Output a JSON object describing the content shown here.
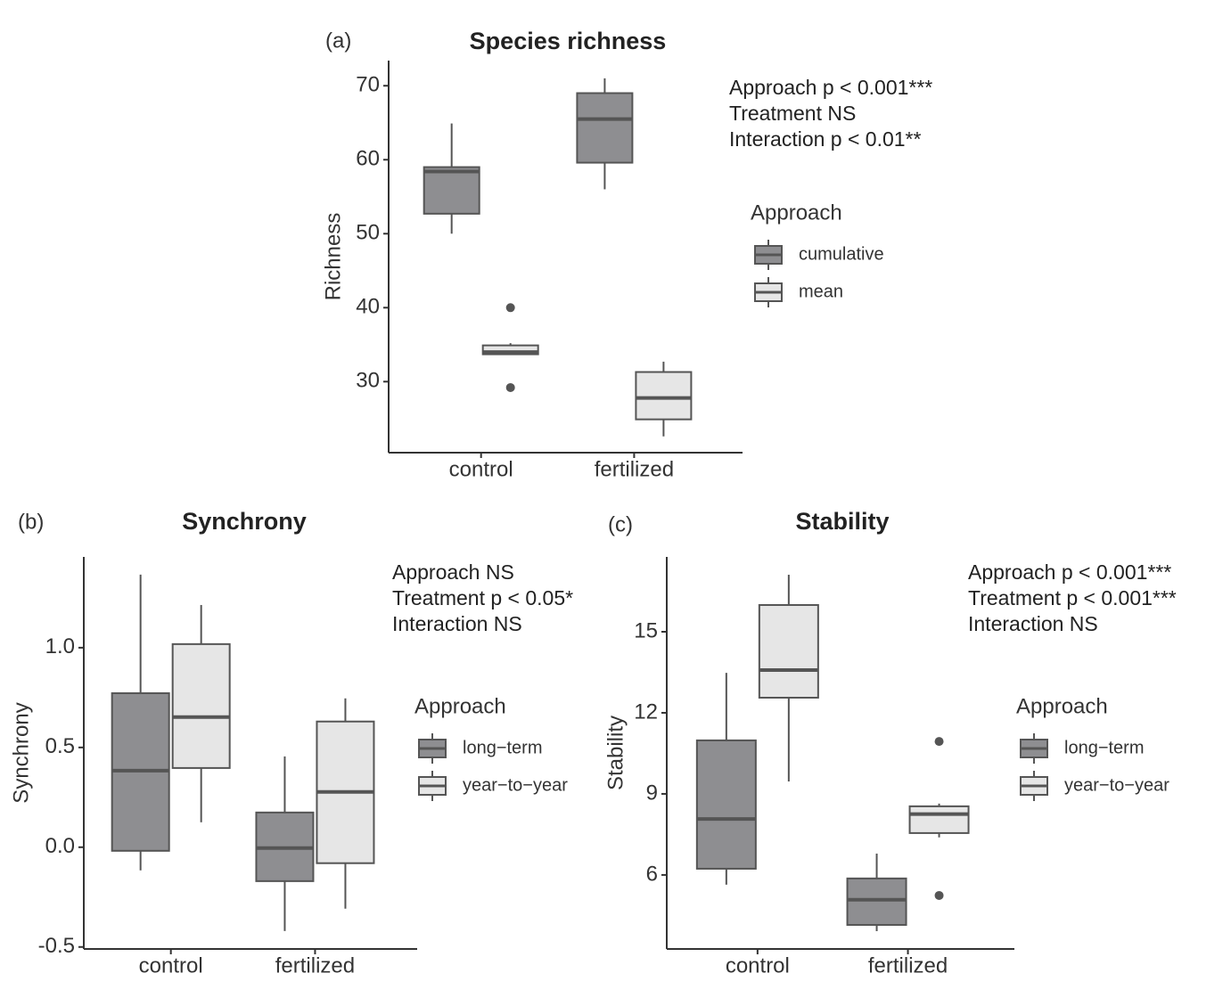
{
  "chart_data": [
    {
      "type": "box",
      "panel": "(a)",
      "title": "Species richness",
      "ylabel": "Richness",
      "categories": [
        "control",
        "fertilized"
      ],
      "ylim": [
        20.4,
        73.4
      ],
      "yticks": [
        30,
        40,
        50,
        60,
        70
      ],
      "annotations": [
        "Approach p < 0.001***",
        "Treatment NS",
        "Interaction p < 0.01**"
      ],
      "legend_title": "Approach",
      "series": [
        {
          "name": "cumulative",
          "color": "#8e8e91",
          "boxes": [
            {
              "min": 50.0,
              "q1": 52.7,
              "median": 58.4,
              "q3": 59.0,
              "max": 64.9,
              "outliers": []
            },
            {
              "min": 56.0,
              "q1": 59.6,
              "median": 65.5,
              "q3": 69.0,
              "max": 71.0,
              "outliers": []
            }
          ]
        },
        {
          "name": "mean",
          "color": "#e6e6e6",
          "boxes": [
            {
              "min": 33.7,
              "q1": 33.7,
              "median": 34.0,
              "q3": 34.9,
              "max": 35.2,
              "outliers": [
                40.0,
                29.2
              ]
            },
            {
              "min": 22.6,
              "q1": 24.9,
              "median": 27.8,
              "q3": 31.3,
              "max": 32.7,
              "outliers": []
            }
          ]
        }
      ]
    },
    {
      "type": "box",
      "panel": "(b)",
      "title": "Synchrony",
      "ylabel": "Synchrony",
      "categories": [
        "control",
        "fertilized"
      ],
      "ylim": [
        -0.51,
        1.455
      ],
      "yticks": [
        -0.5,
        {
          "value": 0,
          "label": "0.0"
        },
        0.5,
        {
          "value": 1,
          "label": "1.0"
        }
      ],
      "annotations": [
        "Approach NS",
        "Treatment p < 0.05*",
        "Interaction NS"
      ],
      "legend_title": "Approach",
      "series": [
        {
          "name": "long−term",
          "color": "#8e8e91",
          "boxes": [
            {
              "min": -0.116,
              "q1": -0.018,
              "median": 0.384,
              "q3": 0.772,
              "max": 1.366,
              "outliers": []
            },
            {
              "min": -0.42,
              "q1": -0.17,
              "median": -0.004,
              "q3": 0.174,
              "max": 0.455,
              "outliers": []
            }
          ]
        },
        {
          "name": "year−to−year",
          "color": "#e6e6e6",
          "boxes": [
            {
              "min": 0.125,
              "q1": 0.397,
              "median": 0.652,
              "q3": 1.018,
              "max": 1.214,
              "outliers": []
            },
            {
              "min": -0.308,
              "q1": -0.08,
              "median": 0.277,
              "q3": 0.63,
              "max": 0.746,
              "outliers": []
            }
          ]
        }
      ]
    },
    {
      "type": "box",
      "panel": "(c)",
      "title": "Stability",
      "ylabel": "Stability",
      "categories": [
        "control",
        "fertilized"
      ],
      "ylim": [
        3.26,
        17.77
      ],
      "yticks": [
        6,
        9,
        12,
        15
      ],
      "annotations": [
        "Approach p <  0.001***",
        "Treatment p < 0.001***",
        "Interaction NS"
      ],
      "legend_title": "Approach",
      "series": [
        {
          "name": "long−term",
          "color": "#8e8e91",
          "boxes": [
            {
              "min": 5.64,
              "q1": 6.23,
              "median": 8.07,
              "q3": 10.98,
              "max": 13.48,
              "outliers": []
            },
            {
              "min": 3.92,
              "q1": 4.15,
              "median": 5.08,
              "q3": 5.87,
              "max": 6.79,
              "outliers": []
            }
          ]
        },
        {
          "name": "year−to−year",
          "color": "#e6e6e6",
          "boxes": [
            {
              "min": 9.46,
              "q1": 12.56,
              "median": 13.58,
              "q3": 15.99,
              "max": 17.11,
              "outliers": []
            },
            {
              "min": 7.39,
              "q1": 7.55,
              "median": 8.25,
              "q3": 8.54,
              "max": 8.64,
              "outliers": [
                10.94,
                5.24
              ]
            }
          ]
        }
      ]
    }
  ]
}
